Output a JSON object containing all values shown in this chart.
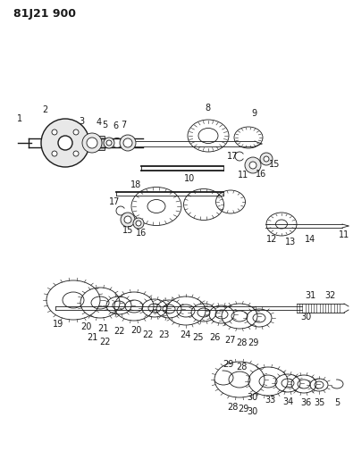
{
  "title": "81J21 900",
  "bg_color": "#ffffff",
  "line_color": "#1a1a1a",
  "label_color": "#1a1a1a",
  "title_fontsize": 9,
  "label_fontsize": 7,
  "fig_width": 3.95,
  "fig_height": 5.33
}
